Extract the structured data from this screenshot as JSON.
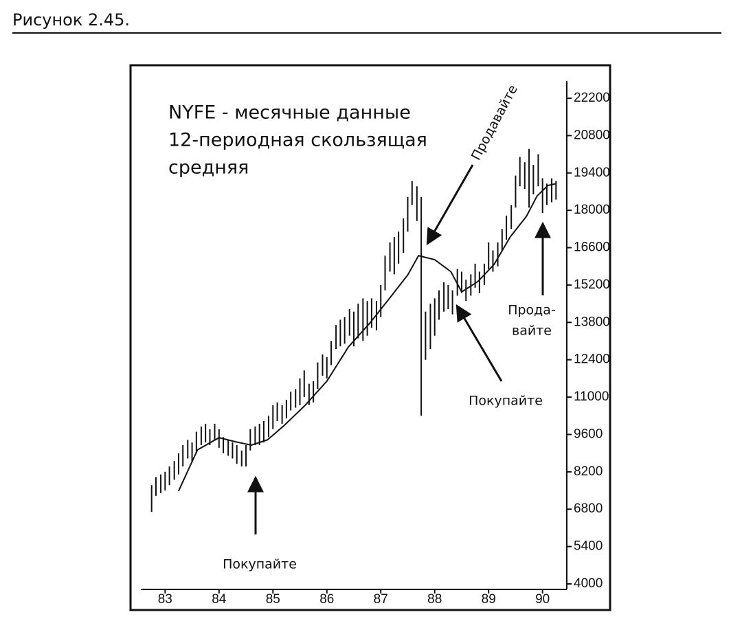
{
  "figure_caption": "Рисунок 2.45.",
  "chart_data": {
    "type": "hilo",
    "title": [
      "NYFE - месячные данные",
      "12-периодная скользящая",
      "средняя"
    ],
    "annotations": [
      "Покупайте",
      "Продавайте",
      "Покупайте",
      "Прода-",
      "вайте"
    ],
    "x": [
      82.75,
      82.83,
      82.92,
      83.0,
      83.08,
      83.17,
      83.25,
      83.33,
      83.42,
      83.5,
      83.58,
      83.67,
      83.75,
      83.83,
      83.92,
      84.0,
      84.08,
      84.17,
      84.25,
      84.33,
      84.42,
      84.5,
      84.58,
      84.67,
      84.75,
      84.83,
      84.92,
      85.0,
      85.08,
      85.17,
      85.25,
      85.33,
      85.42,
      85.5,
      85.58,
      85.67,
      85.75,
      85.83,
      85.92,
      86.0,
      86.08,
      86.17,
      86.25,
      86.33,
      86.42,
      86.5,
      86.58,
      86.67,
      86.75,
      86.83,
      86.92,
      87.0,
      87.08,
      87.17,
      87.25,
      87.33,
      87.42,
      87.5,
      87.58,
      87.67,
      87.75,
      87.83,
      87.92,
      88.0,
      88.08,
      88.17,
      88.25,
      88.33,
      88.42,
      88.5,
      88.58,
      88.67,
      88.75,
      88.83,
      88.92,
      89.0,
      89.08,
      89.17,
      89.25,
      89.33,
      89.42,
      89.5,
      89.58,
      89.67,
      89.75,
      89.83,
      89.92,
      90.0,
      90.08,
      90.17,
      90.25
    ],
    "low": [
      6700,
      7300,
      7400,
      7500,
      7700,
      7900,
      8100,
      8400,
      8700,
      8600,
      8900,
      9200,
      9300,
      9200,
      9400,
      9100,
      8900,
      8800,
      8700,
      8500,
      8400,
      8400,
      9000,
      9200,
      9200,
      9300,
      9500,
      9800,
      10100,
      10000,
      10200,
      10500,
      10600,
      10700,
      11000,
      10700,
      10800,
      11300,
      11800,
      11700,
      12200,
      12800,
      12900,
      13000,
      13300,
      12900,
      13200,
      13100,
      13300,
      13600,
      13500,
      14000,
      15000,
      15700,
      15600,
      16000,
      16400,
      17200,
      18200,
      17600,
      10300,
      12400,
      12800,
      13300,
      13900,
      14200,
      14300,
      14100,
      14800,
      14900,
      14600,
      14800,
      15100,
      14900,
      15200,
      15800,
      15700,
      15900,
      16500,
      16900,
      17300,
      18100,
      18900,
      18800,
      18100,
      18600,
      18900,
      17900,
      18200,
      18300,
      18400
    ],
    "high": [
      7700,
      8000,
      8100,
      8200,
      8400,
      8600,
      8900,
      9200,
      9400,
      9300,
      9700,
      9900,
      10000,
      9800,
      10000,
      9800,
      9500,
      9400,
      9300,
      9200,
      9000,
      9200,
      9800,
      9900,
      10000,
      10100,
      10300,
      10700,
      10800,
      10700,
      10900,
      11200,
      11300,
      11700,
      12000,
      11500,
      11600,
      12300,
      12600,
      12500,
      13100,
      13700,
      13900,
      14000,
      14300,
      14200,
      14500,
      14700,
      14600,
      14700,
      14600,
      15200,
      16300,
      16800,
      17000,
      17200,
      17700,
      18500,
      19100,
      18900,
      18500,
      14200,
      14500,
      14700,
      15000,
      15300,
      15200,
      15000,
      15800,
      15700,
      15400,
      15600,
      16000,
      15700,
      16000,
      16800,
      16500,
      16800,
      17300,
      17800,
      18200,
      19300,
      20000,
      19800,
      20300,
      19700,
      20100,
      19200,
      19000,
      19200,
      19100
    ],
    "moving_average": {
      "x": [
        83.25,
        83.6,
        84.0,
        84.3,
        84.6,
        84.9,
        85.2,
        85.6,
        86.0,
        86.4,
        86.8,
        87.2,
        87.5,
        87.7,
        88.0,
        88.3,
        88.5,
        88.8,
        89.1,
        89.4,
        89.7,
        89.9,
        90.1,
        90.25
      ],
      "values": [
        7480,
        9020,
        9480,
        9330,
        9200,
        9400,
        9920,
        10700,
        11600,
        12880,
        13780,
        14800,
        15580,
        16300,
        16150,
        15700,
        14940,
        15330,
        15970,
        17000,
        17770,
        18540,
        18930,
        19000
      ]
    },
    "color": "#111111",
    "xlim": [
      82.55,
      90.45
    ],
    "xticks": [
      83,
      84,
      85,
      86,
      87,
      88,
      89,
      90
    ],
    "ylim": [
      4000,
      22200
    ],
    "yticks": [
      4000,
      5400,
      6800,
      8200,
      9600,
      11000,
      12400,
      13800,
      15200,
      16600,
      18000,
      19400,
      20800,
      22200
    ],
    "y_axis_side": "right"
  }
}
